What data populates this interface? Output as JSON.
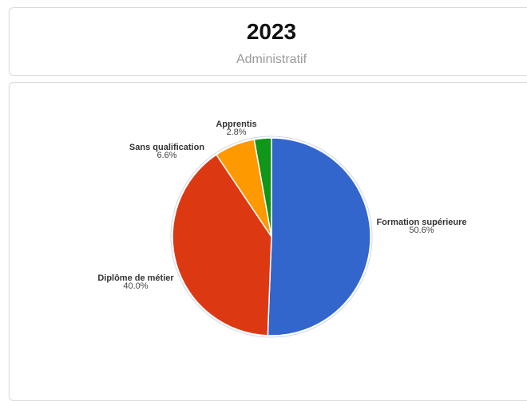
{
  "header": {
    "year": "2023",
    "category": "Administratif"
  },
  "chart_data": {
    "type": "pie",
    "slices": [
      {
        "name": "Formation supérieure",
        "value": 50.6,
        "label": "50.6%",
        "color": "#3366cc"
      },
      {
        "name": "Diplôme de métier",
        "value": 40.0,
        "label": "40.0%",
        "color": "#dc3912"
      },
      {
        "name": "Sans qualification",
        "value": 6.6,
        "label": "6.6%",
        "color": "#ff9900"
      },
      {
        "name": "Apprentis",
        "value": 2.8,
        "label": "2.8%",
        "color": "#109618"
      }
    ],
    "start_angle": "top",
    "direction": "clockwise",
    "legend": "none"
  }
}
